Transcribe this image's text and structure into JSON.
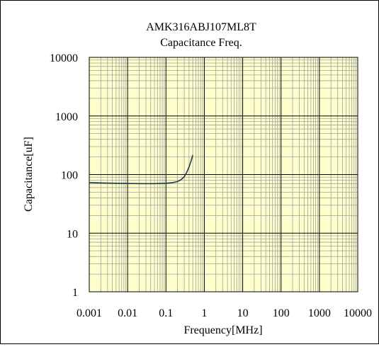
{
  "chart_data": {
    "type": "line",
    "title": "AMK316ABJ107ML8T",
    "subtitle": "Capacitance Freq.",
    "xlabel": "Frequency[MHz]",
    "ylabel": "Capacitance[uF]",
    "x_scale": "log",
    "y_scale": "log",
    "xlim": [
      0.001,
      10000
    ],
    "ylim": [
      1,
      10000
    ],
    "x_ticks": [
      "0.001",
      "0.01",
      "0.1",
      "1",
      "10",
      "100",
      "1000",
      "10000"
    ],
    "y_ticks": [
      "1",
      "10",
      "100",
      "1000",
      "10000"
    ],
    "grid": true,
    "plot_background": "#FFFFCC",
    "grid_color": "#A0A0A0",
    "line_color": "#1F3A4D",
    "series": [
      {
        "x": [
          0.001,
          0.002,
          0.005,
          0.01,
          0.02,
          0.05,
          0.1,
          0.15,
          0.2,
          0.25,
          0.3,
          0.35,
          0.4,
          0.45,
          0.5
        ],
        "y": [
          73,
          72,
          71,
          70.5,
          70,
          70,
          71,
          73,
          76,
          82,
          92,
          110,
          135,
          170,
          215
        ]
      }
    ]
  }
}
